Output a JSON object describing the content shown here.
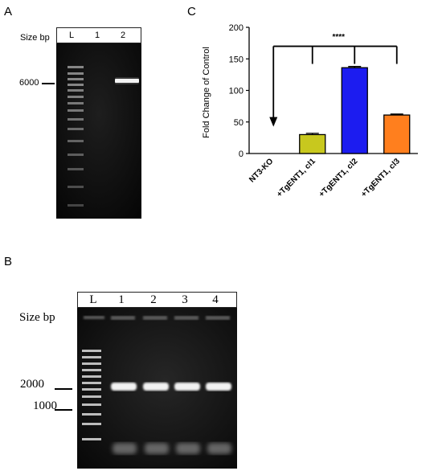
{
  "panelA": {
    "letter": "A",
    "size_label": "Size bp",
    "lanes": [
      "L",
      "1",
      "2"
    ],
    "marker": "6000"
  },
  "panelB": {
    "letter": "B",
    "size_label": "Size bp",
    "lanes": [
      "L",
      "1",
      "2",
      "3",
      "4"
    ],
    "markers": [
      "2000",
      "1000"
    ]
  },
  "panelC": {
    "letter": "C",
    "significance": "****"
  },
  "colors": {
    "bar_cl1": "#c8c81e",
    "bar_cl2": "#1c1cf0",
    "bar_cl3": "#ff7f1e",
    "gel_bg": "#0c0c0c"
  },
  "chart_data": {
    "type": "bar",
    "title": "",
    "xlabel": "",
    "ylabel": "Fold Change of Control",
    "categories": [
      "NT3-KO",
      "+TgENT1, cl1",
      "+TgENT1, cl2",
      "+TgENT1, cl3"
    ],
    "values": [
      0,
      30,
      136,
      61
    ],
    "errors": [
      0,
      2,
      2,
      1.5
    ],
    "ylim": [
      0,
      200
    ],
    "yticks": [
      0,
      50,
      100,
      150,
      200
    ],
    "grid": false,
    "annotation": "****"
  }
}
